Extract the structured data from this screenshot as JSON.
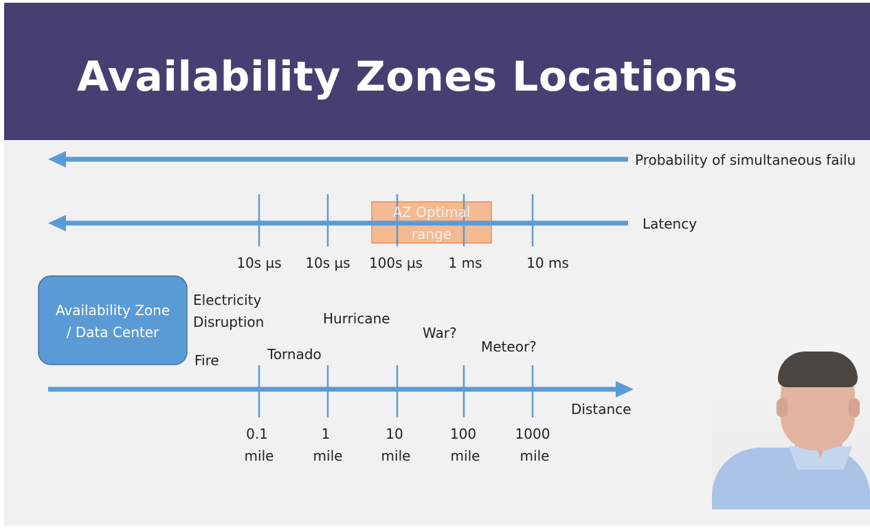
{
  "slide": {
    "title": "Availability Zones Locations"
  },
  "probability_axis": {
    "label": "Probability of simultaneous failu"
  },
  "latency_axis": {
    "label": "Latency",
    "ticks": [
      "10s µs",
      "10s µs",
      "100s µs",
      "1 ms",
      "10 ms"
    ],
    "optimal_range": {
      "line1": "AZ Optimal",
      "line2": "range"
    }
  },
  "distance_axis": {
    "label": "Distance",
    "ticks": [
      {
        "value": "0.1",
        "unit": "mile"
      },
      {
        "value": "1",
        "unit": "mile"
      },
      {
        "value": "10",
        "unit": "mile"
      },
      {
        "value": "100",
        "unit": "mile"
      },
      {
        "value": "1000",
        "unit": "mile"
      }
    ]
  },
  "az_box": {
    "line1": "Availability Zone",
    "line2": "/ Data Center"
  },
  "events": {
    "electricity_line1": "Electricity",
    "electricity_line2": "Disruption",
    "fire": "Fire",
    "tornado": "Tornado",
    "hurricane": "Hurricane",
    "war": "War?",
    "meteor": "Meteor?"
  },
  "colors": {
    "header_bg": "#453f72",
    "slide_bg": "#f1f1f1",
    "axis": "#5b9bd5",
    "az_box": "#5b9bd5",
    "optimal_range": "#f4b183"
  }
}
